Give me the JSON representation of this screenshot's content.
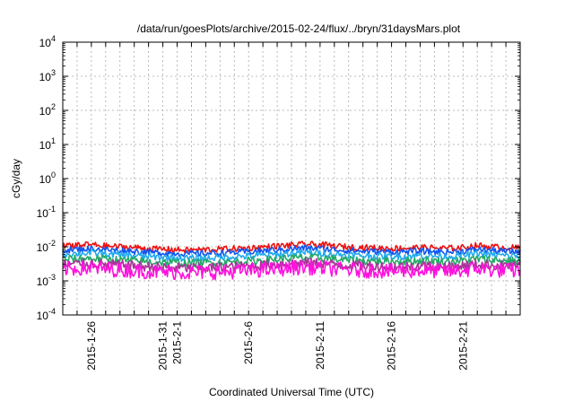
{
  "chart_data": {
    "type": "line",
    "title": "/data/run/goesPlots/archive/2015-02-24/flux/../bryn/31daysMars.plot",
    "xlabel": "Coordinated Universal Time (UTC)",
    "ylabel": "cGy/day",
    "x_range": [
      "2015-01-24",
      "2015-02-25"
    ],
    "ylim": [
      0.0001,
      10000
    ],
    "y_scale": "log",
    "grid": true,
    "x_ticks": [
      {
        "date": "2015-01-26",
        "label": "2015-1-26"
      },
      {
        "date": "2015-01-31",
        "label": "2015-1-31"
      },
      {
        "date": "2015-02-01",
        "label": "2015-2-1"
      },
      {
        "date": "2015-02-06",
        "label": "2015-2-6"
      },
      {
        "date": "2015-02-11",
        "label": "2015-2-11"
      },
      {
        "date": "2015-02-16",
        "label": "2015-2-16"
      },
      {
        "date": "2015-02-21",
        "label": "2015-2-21"
      }
    ],
    "y_ticks": [
      {
        "value": 0.0001,
        "base": "10",
        "exp": "-4"
      },
      {
        "value": 0.001,
        "base": "10",
        "exp": "-3"
      },
      {
        "value": 0.01,
        "base": "10",
        "exp": "-2"
      },
      {
        "value": 0.1,
        "base": "10",
        "exp": "-1"
      },
      {
        "value": 1,
        "base": "10",
        "exp": "0"
      },
      {
        "value": 10,
        "base": "10",
        "exp": "1"
      },
      {
        "value": 100,
        "base": "10",
        "exp": "2"
      },
      {
        "value": 1000,
        "base": "10",
        "exp": "3"
      },
      {
        "value": 10000,
        "base": "10",
        "exp": "4"
      }
    ],
    "series_time": [
      "2015-01-24",
      "2015-01-25",
      "2015-01-26",
      "2015-01-27",
      "2015-01-28",
      "2015-01-29",
      "2015-01-30",
      "2015-01-31",
      "2015-02-01",
      "2015-02-02",
      "2015-02-03",
      "2015-02-04",
      "2015-02-05",
      "2015-02-06",
      "2015-02-07",
      "2015-02-08",
      "2015-02-09",
      "2015-02-10",
      "2015-02-11",
      "2015-02-12",
      "2015-02-13",
      "2015-02-14",
      "2015-02-15",
      "2015-02-16",
      "2015-02-17",
      "2015-02-18",
      "2015-02-19",
      "2015-02-20",
      "2015-02-21",
      "2015-02-22",
      "2015-02-23",
      "2015-02-24",
      "2015-02-25"
    ],
    "series": [
      {
        "color": "#ee1111",
        "values": [
          0.0105,
          0.011,
          0.0115,
          0.0105,
          0.01,
          0.0095,
          0.0088,
          0.0085,
          0.0082,
          0.008,
          0.0082,
          0.0085,
          0.0088,
          0.0092,
          0.0098,
          0.0105,
          0.0112,
          0.0118,
          0.0115,
          0.0105,
          0.0098,
          0.0095,
          0.0092,
          0.009,
          0.0092,
          0.0095,
          0.0092,
          0.009,
          0.0095,
          0.011,
          0.01,
          0.0095,
          0.0092
        ]
      },
      {
        "color": "#1155ee",
        "values": [
          0.008,
          0.0084,
          0.0088,
          0.0082,
          0.0078,
          0.0074,
          0.0069,
          0.0066,
          0.0064,
          0.0063,
          0.0064,
          0.0066,
          0.0069,
          0.0072,
          0.0076,
          0.0082,
          0.0087,
          0.0092,
          0.009,
          0.0082,
          0.0077,
          0.0074,
          0.0072,
          0.007,
          0.0072,
          0.0074,
          0.0072,
          0.007,
          0.0074,
          0.0085,
          0.0078,
          0.0074,
          0.0072
        ]
      },
      {
        "color": "#22aaee",
        "values": [
          0.006,
          0.0063,
          0.0066,
          0.0061,
          0.0058,
          0.0055,
          0.0051,
          0.0049,
          0.0047,
          0.0046,
          0.0047,
          0.0049,
          0.0051,
          0.0053,
          0.0056,
          0.006,
          0.0064,
          0.0068,
          0.0066,
          0.006,
          0.0057,
          0.0055,
          0.0053,
          0.0052,
          0.0053,
          0.0055,
          0.0053,
          0.0052,
          0.0055,
          0.0063,
          0.0058,
          0.0055,
          0.0053
        ]
      },
      {
        "color": "#22aa66",
        "values": [
          0.0042,
          0.0044,
          0.0046,
          0.0043,
          0.0041,
          0.0039,
          0.0036,
          0.0035,
          0.0034,
          0.0033,
          0.0034,
          0.0035,
          0.0036,
          0.0038,
          0.004,
          0.0043,
          0.0046,
          0.0048,
          0.0047,
          0.0043,
          0.004,
          0.0039,
          0.0038,
          0.0037,
          0.0038,
          0.0039,
          0.0038,
          0.0037,
          0.0039,
          0.0044,
          0.0041,
          0.0039,
          0.0038
        ]
      },
      {
        "color": "#aa3399",
        "values": [
          0.003,
          0.0031,
          0.0033,
          0.003,
          0.0029,
          0.0028,
          0.0026,
          0.0025,
          0.0024,
          0.0024,
          0.0024,
          0.0025,
          0.0026,
          0.0027,
          0.0029,
          0.0031,
          0.0033,
          0.0034,
          0.0033,
          0.003,
          0.0029,
          0.0028,
          0.0027,
          0.0026,
          0.0027,
          0.0028,
          0.0027,
          0.0026,
          0.0028,
          0.0031,
          0.0029,
          0.0028,
          0.0027
        ]
      },
      {
        "color": "#ff11dd",
        "values": [
          0.0022,
          0.0023,
          0.0024,
          0.0022,
          0.0021,
          0.002,
          0.0019,
          0.0018,
          0.0018,
          0.0017,
          0.0018,
          0.0018,
          0.0019,
          0.002,
          0.0021,
          0.0022,
          0.0024,
          0.0025,
          0.0024,
          0.0022,
          0.0021,
          0.002,
          0.002,
          0.0019,
          0.002,
          0.002,
          0.002,
          0.0019,
          0.002,
          0.0023,
          0.0021,
          0.002,
          0.002
        ]
      }
    ]
  }
}
